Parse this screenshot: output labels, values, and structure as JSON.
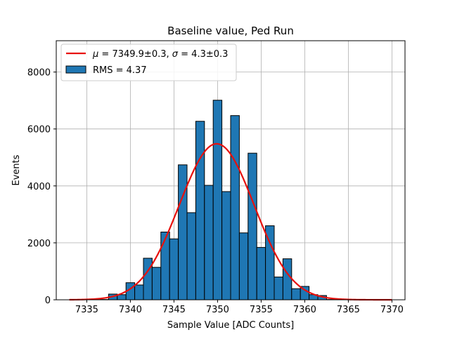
{
  "chart_data": {
    "type": "bar",
    "title": "Baseline value, Ped Run",
    "xlabel": "Sample Value [ADC Counts]",
    "ylabel": "Events",
    "xlim": [
      7331.5,
      7371.5
    ],
    "ylim": [
      0,
      9100
    ],
    "xticks": [
      7335,
      7340,
      7345,
      7350,
      7355,
      7360,
      7365,
      7370
    ],
    "yticks": [
      0,
      2000,
      4000,
      6000,
      8000
    ],
    "grid": true,
    "legend_position": "top-left",
    "colors": {
      "bars": "#1f77b4",
      "bar_edge": "#000000",
      "fit": "#e8100c",
      "grid": "#b0b0b0"
    },
    "histogram": {
      "name": "RMS = 4.37",
      "bin_width": 1,
      "bin_centers": [
        7336,
        7337,
        7338,
        7339,
        7340,
        7341,
        7342,
        7343,
        7344,
        7345,
        7346,
        7347,
        7348,
        7349,
        7350,
        7351,
        7352,
        7353,
        7354,
        7355,
        7356,
        7357,
        7358,
        7359,
        7360,
        7361,
        7362,
        7363
      ],
      "counts": [
        0,
        10,
        200,
        180,
        600,
        520,
        1460,
        1140,
        2380,
        2140,
        4740,
        3060,
        6270,
        4020,
        7010,
        3800,
        6470,
        2350,
        5150,
        1840,
        2600,
        800,
        1440,
        390,
        470,
        180,
        150,
        10
      ]
    },
    "fit": {
      "name_html": "<tspan font-style='italic'>μ</tspan> = 7349.9±0.3, <tspan font-style='italic'>σ</tspan> = 4.3±0.3",
      "name": "μ = 7349.9±0.3, σ = 4.3±0.3",
      "mu": 7349.9,
      "sigma": 4.3,
      "amplitude": 5480,
      "x_range": [
        7333,
        7370
      ]
    }
  }
}
